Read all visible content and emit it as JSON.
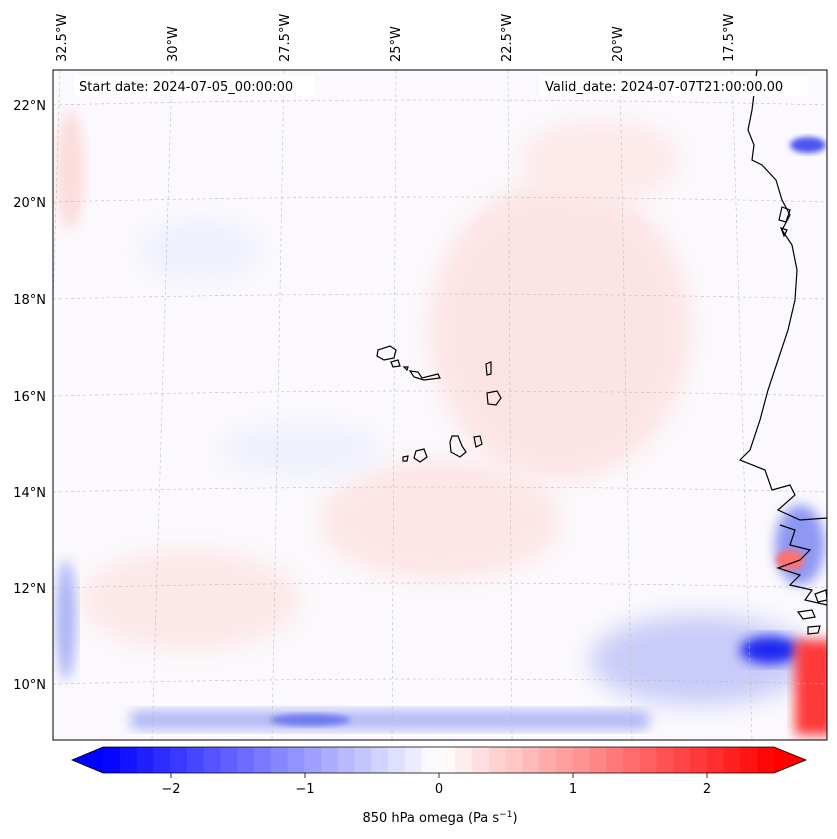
{
  "annotations": {
    "start_date": "Start date: 2024-07-05_00:00:00",
    "valid_date": "Valid_date: 2024-07-07T21:00:00.00"
  },
  "longitude_labels": [
    "32.5°W",
    "30°W",
    "27.5°W",
    "25°W",
    "22.5°W",
    "20°W",
    "17.5°W"
  ],
  "latitude_labels": [
    "22°N",
    "20°N",
    "18°N",
    "16°N",
    "14°N",
    "12°N",
    "10°N"
  ],
  "colorbar": {
    "label": "850 hPa omega (Pa s",
    "label_exponent": "−1",
    "label_close": ")",
    "ticks": [
      "−2",
      "−1",
      "0",
      "1",
      "2"
    ],
    "range": [
      -2.6,
      2.6
    ],
    "extend": "both",
    "colormap": "bwr",
    "color_negative": "#0000ff",
    "color_zero": "#ffffff",
    "color_positive": "#ff0000"
  },
  "map": {
    "gridlines": true,
    "coastline_color": "#000000",
    "field_background": "#fbf9fd"
  }
}
